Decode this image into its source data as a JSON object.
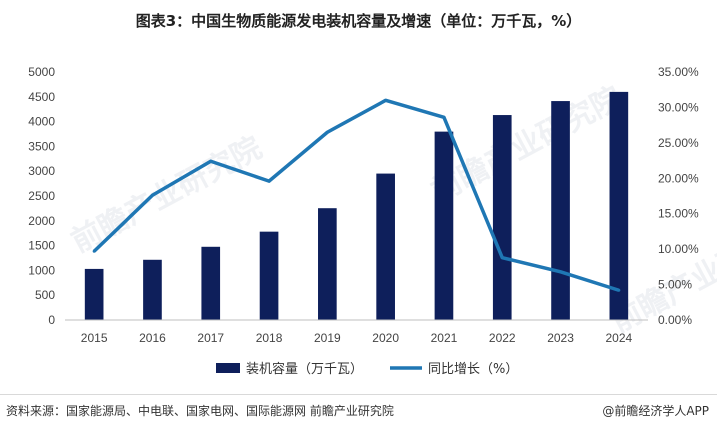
{
  "title": "图表3：中国生物质能源发电装机容量及增速（单位：万千瓦，%）",
  "source": "资料来源：国家能源局、中电联、国家电网、国际能源网 前瞻产业研究院",
  "brand": "@前瞻经济学人APP",
  "watermark": "前瞻产业研究院",
  "chart_data": {
    "type": "bar",
    "categories": [
      "2015",
      "2016",
      "2017",
      "2018",
      "2019",
      "2020",
      "2021",
      "2022",
      "2023",
      "2024"
    ],
    "series": [
      {
        "name": "装机容量（万千瓦）",
        "type": "bar",
        "axis": "left",
        "color": "#0e1f5b",
        "values": [
          1030,
          1214,
          1476,
          1781,
          2254,
          2952,
          3798,
          4132,
          4414,
          4599
        ]
      },
      {
        "name": "同比增长（%）",
        "type": "line",
        "axis": "right",
        "color": "#1f77b4",
        "values": [
          9.7,
          17.6,
          22.4,
          19.6,
          26.5,
          31.0,
          28.6,
          8.8,
          6.8,
          4.2
        ]
      }
    ],
    "left_axis": {
      "ylim": [
        0,
        5000
      ],
      "ticks": [
        "0",
        "500",
        "1000",
        "1500",
        "2000",
        "2500",
        "3000",
        "3500",
        "4000",
        "4500",
        "5000"
      ]
    },
    "right_axis": {
      "ylim": [
        0,
        35
      ],
      "ticks": [
        "0.00%",
        "5.00%",
        "10.00%",
        "15.00%",
        "20.00%",
        "25.00%",
        "30.00%",
        "35.00%"
      ]
    },
    "grid": false,
    "legend": "bottom"
  }
}
